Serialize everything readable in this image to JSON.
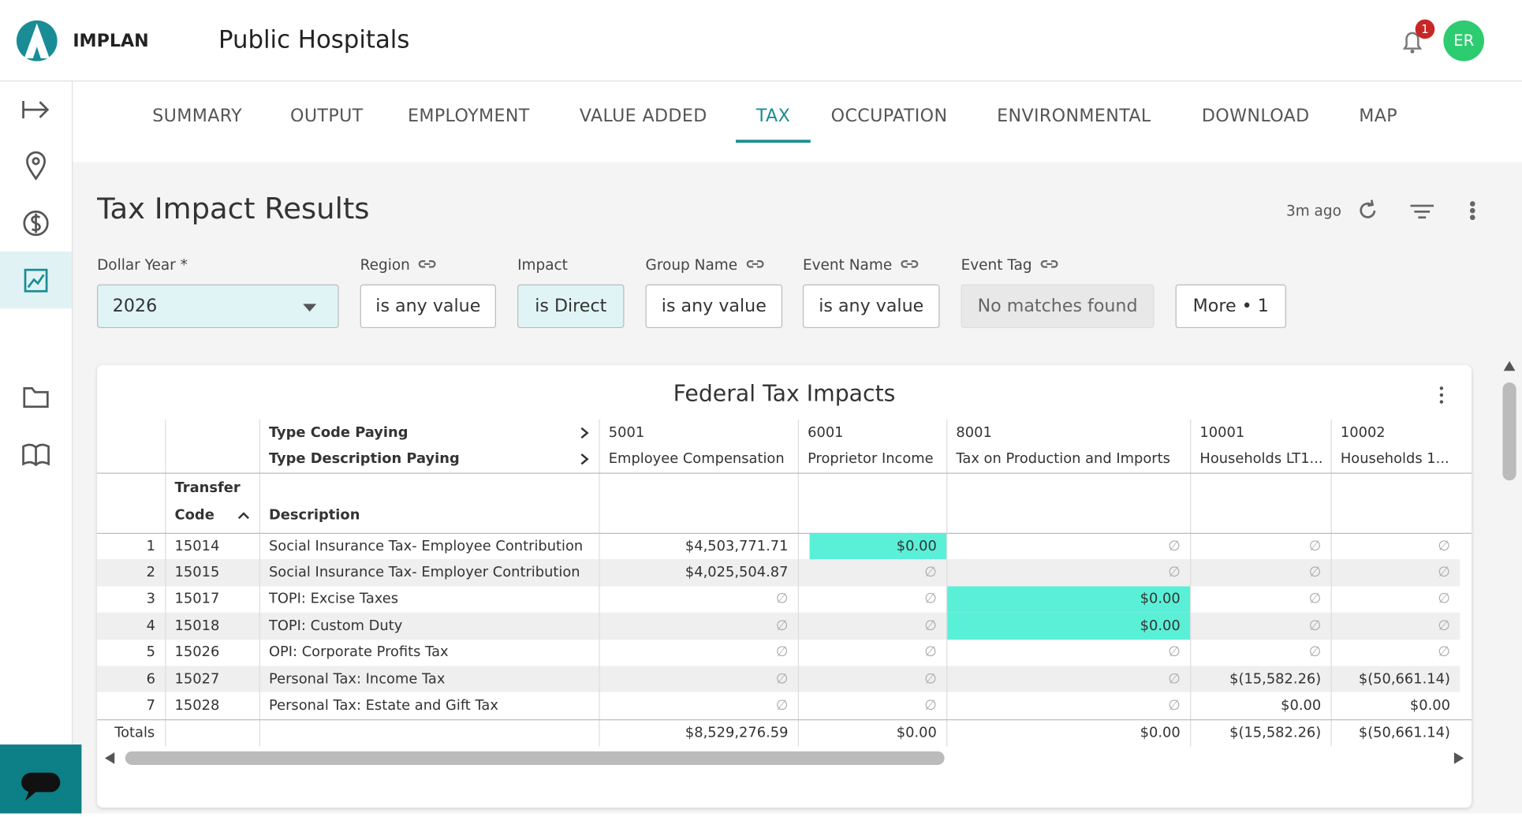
{
  "header": {
    "brand": "IMPLAN",
    "title": "Public Hospitals",
    "notification_count": "1",
    "avatar": "ER"
  },
  "tabs": [
    {
      "label": "SUMMARY"
    },
    {
      "label": "OUTPUT"
    },
    {
      "label": "EMPLOYMENT"
    },
    {
      "label": "VALUE ADDED"
    },
    {
      "label": "TAX",
      "active": true
    },
    {
      "label": "OCCUPATION"
    },
    {
      "label": "ENVIRONMENTAL"
    },
    {
      "label": "DOWNLOAD"
    },
    {
      "label": "MAP"
    }
  ],
  "page": {
    "title": "Tax Impact Results",
    "updated": "3m ago"
  },
  "filters": [
    {
      "label": "Dollar Year *",
      "value": "2026",
      "style": "selected",
      "dropdown": true
    },
    {
      "label": "Region",
      "value": "is any value",
      "linked": true
    },
    {
      "label": "Impact",
      "value": "is Direct",
      "style": "selected"
    },
    {
      "label": "Group Name",
      "value": "is any value",
      "linked": true
    },
    {
      "label": "Event Name",
      "value": "is any value",
      "linked": true
    },
    {
      "label": "Event Tag",
      "value": "No matches found",
      "linked": true,
      "style": "disabled"
    },
    {
      "value": "More • 1"
    }
  ],
  "table": {
    "title": "Federal Tax Impacts",
    "pivot_labels": [
      "Type Code Paying",
      "Type Description Paying"
    ],
    "columns": [
      {
        "code": "5001",
        "description": "Employee Compensation"
      },
      {
        "code": "6001",
        "description": "Proprietor Income"
      },
      {
        "code": "8001",
        "description": "Tax on Production and Imports"
      },
      {
        "code": "10001",
        "description": "Households LT1..."
      },
      {
        "code": "10002",
        "description": "Households 1..."
      }
    ],
    "row_headers": [
      "Transfer",
      "Code",
      "Description"
    ],
    "rows": [
      {
        "n": "1",
        "code": "15014",
        "description": "Social Insurance Tax- Employee Contribution",
        "values": [
          "$4,503,771.71",
          "$0.00",
          "∅",
          "∅",
          "∅"
        ],
        "highlight": [
          1
        ]
      },
      {
        "n": "2",
        "code": "15015",
        "description": "Social Insurance Tax- Employer Contribution",
        "values": [
          "$4,025,504.87",
          "∅",
          "∅",
          "∅",
          "∅"
        ]
      },
      {
        "n": "3",
        "code": "15017",
        "description": "TOPI: Excise Taxes",
        "values": [
          "∅",
          "∅",
          "$0.00",
          "∅",
          "∅"
        ],
        "highlight": [
          2
        ]
      },
      {
        "n": "4",
        "code": "15018",
        "description": "TOPI: Custom Duty",
        "values": [
          "∅",
          "∅",
          "$0.00",
          "∅",
          "∅"
        ],
        "highlight": [
          2
        ]
      },
      {
        "n": "5",
        "code": "15026",
        "description": "OPI: Corporate Profits Tax",
        "values": [
          "∅",
          "∅",
          "∅",
          "∅",
          "∅"
        ]
      },
      {
        "n": "6",
        "code": "15027",
        "description": "Personal Tax: Income Tax",
        "values": [
          "∅",
          "∅",
          "∅",
          "$(15,582.26)",
          "$(50,661.14)"
        ]
      },
      {
        "n": "7",
        "code": "15028",
        "description": "Personal Tax: Estate and Gift Tax",
        "values": [
          "∅",
          "∅",
          "∅",
          "$0.00",
          "$0.00"
        ]
      }
    ],
    "totals_label": "Totals",
    "totals": [
      "$8,529,276.59",
      "$0.00",
      "$0.00",
      "$(15,582.26)",
      "$(50,661.14)"
    ]
  }
}
